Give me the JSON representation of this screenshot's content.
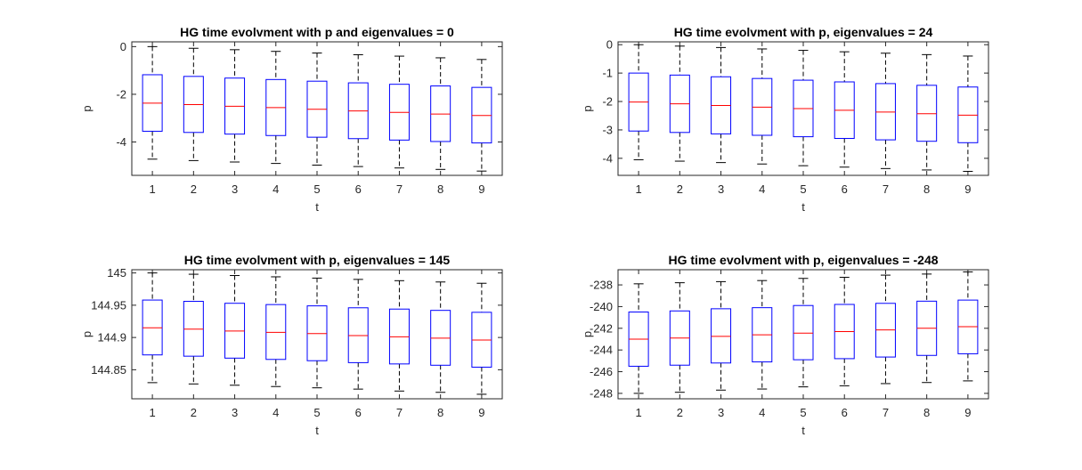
{
  "chart_data": [
    {
      "type": "box",
      "title": "HG time evolvment with p and eigenvalues = 0",
      "xlabel": "t",
      "ylabel": "p",
      "categories": [
        "1",
        "2",
        "3",
        "4",
        "5",
        "6",
        "7",
        "8",
        "9"
      ],
      "ylim": [
        -5.4,
        0.2
      ],
      "yticks": [
        0,
        -2,
        -4
      ],
      "ytick_labels": [
        "0",
        "-2",
        "-4"
      ],
      "boxes": [
        {
          "upper_whisker": 0.0,
          "q3": -1.18,
          "median": -2.37,
          "q1": -3.55,
          "lower_whisker": -4.72
        },
        {
          "upper_whisker": -0.07,
          "q3": -1.25,
          "median": -2.43,
          "q1": -3.6,
          "lower_whisker": -4.78
        },
        {
          "upper_whisker": -0.13,
          "q3": -1.32,
          "median": -2.5,
          "q1": -3.67,
          "lower_whisker": -4.84
        },
        {
          "upper_whisker": -0.2,
          "q3": -1.38,
          "median": -2.56,
          "q1": -3.73,
          "lower_whisker": -4.9
        },
        {
          "upper_whisker": -0.27,
          "q3": -1.45,
          "median": -2.63,
          "q1": -3.8,
          "lower_whisker": -4.97
        },
        {
          "upper_whisker": -0.34,
          "q3": -1.52,
          "median": -2.7,
          "q1": -3.86,
          "lower_whisker": -5.03
        },
        {
          "upper_whisker": -0.4,
          "q3": -1.58,
          "median": -2.76,
          "q1": -3.92,
          "lower_whisker": -5.09
        },
        {
          "upper_whisker": -0.47,
          "q3": -1.65,
          "median": -2.83,
          "q1": -3.98,
          "lower_whisker": -5.15
        },
        {
          "upper_whisker": -0.54,
          "q3": -1.71,
          "median": -2.89,
          "q1": -4.04,
          "lower_whisker": -5.22
        }
      ]
    },
    {
      "type": "box",
      "title": "HG time evolvment with p, eigenvalues = 24",
      "xlabel": "t",
      "ylabel": "p",
      "categories": [
        "1",
        "2",
        "3",
        "4",
        "5",
        "6",
        "7",
        "8",
        "9"
      ],
      "ylim": [
        -4.6,
        0.1
      ],
      "yticks": [
        0,
        -1,
        -2,
        -3,
        -4
      ],
      "ytick_labels": [
        "0",
        "-1",
        "-2",
        "-3",
        "-4"
      ],
      "boxes": [
        {
          "upper_whisker": 0.0,
          "q3": -1.0,
          "median": -2.02,
          "q1": -3.04,
          "lower_whisker": -4.05
        },
        {
          "upper_whisker": -0.05,
          "q3": -1.07,
          "median": -2.08,
          "q1": -3.09,
          "lower_whisker": -4.1
        },
        {
          "upper_whisker": -0.1,
          "q3": -1.13,
          "median": -2.14,
          "q1": -3.14,
          "lower_whisker": -4.15
        },
        {
          "upper_whisker": -0.15,
          "q3": -1.19,
          "median": -2.2,
          "q1": -3.19,
          "lower_whisker": -4.2
        },
        {
          "upper_whisker": -0.2,
          "q3": -1.25,
          "median": -2.25,
          "q1": -3.24,
          "lower_whisker": -4.26
        },
        {
          "upper_whisker": -0.25,
          "q3": -1.31,
          "median": -2.31,
          "q1": -3.3,
          "lower_whisker": -4.31
        },
        {
          "upper_whisker": -0.3,
          "q3": -1.37,
          "median": -2.37,
          "q1": -3.35,
          "lower_whisker": -4.36
        },
        {
          "upper_whisker": -0.35,
          "q3": -1.43,
          "median": -2.43,
          "q1": -3.4,
          "lower_whisker": -4.41
        },
        {
          "upper_whisker": -0.4,
          "q3": -1.49,
          "median": -2.48,
          "q1": -3.45,
          "lower_whisker": -4.46
        }
      ]
    },
    {
      "type": "box",
      "title": "HG time evolvment with p, eigenvalues = 145",
      "xlabel": "t",
      "ylabel": "p",
      "categories": [
        "1",
        "2",
        "3",
        "4",
        "5",
        "6",
        "7",
        "8",
        "9"
      ],
      "ylim": [
        144.805,
        145.005
      ],
      "yticks": [
        145,
        144.95,
        144.9,
        144.85
      ],
      "ytick_labels": [
        "145",
        "144.95",
        "144.9",
        "144.85"
      ],
      "boxes": [
        {
          "upper_whisker": 145.0,
          "q3": 144.958,
          "median": 144.915,
          "q1": 144.873,
          "lower_whisker": 144.83
        },
        {
          "upper_whisker": 144.998,
          "q3": 144.956,
          "median": 144.913,
          "q1": 144.871,
          "lower_whisker": 144.828
        },
        {
          "upper_whisker": 144.996,
          "q3": 144.953,
          "median": 144.91,
          "q1": 144.868,
          "lower_whisker": 144.826
        },
        {
          "upper_whisker": 144.994,
          "q3": 144.951,
          "median": 144.908,
          "q1": 144.866,
          "lower_whisker": 144.824
        },
        {
          "upper_whisker": 144.992,
          "q3": 144.949,
          "median": 144.906,
          "q1": 144.864,
          "lower_whisker": 144.822
        },
        {
          "upper_whisker": 144.99,
          "q3": 144.946,
          "median": 144.903,
          "q1": 144.861,
          "lower_whisker": 144.82
        },
        {
          "upper_whisker": 144.988,
          "q3": 144.944,
          "median": 144.901,
          "q1": 144.859,
          "lower_whisker": 144.817
        },
        {
          "upper_whisker": 144.986,
          "q3": 144.942,
          "median": 144.899,
          "q1": 144.857,
          "lower_whisker": 144.815
        },
        {
          "upper_whisker": 144.984,
          "q3": 144.939,
          "median": 144.896,
          "q1": 144.854,
          "lower_whisker": 144.812
        }
      ]
    },
    {
      "type": "box",
      "title": "HG time evolvment with p, eigenvalues = -248",
      "xlabel": "t",
      "ylabel": "p",
      "categories": [
        "1",
        "2",
        "3",
        "4",
        "5",
        "6",
        "7",
        "8",
        "9"
      ],
      "ylim": [
        -248.5,
        -236.6
      ],
      "yticks": [
        -238,
        -240,
        -242,
        -244,
        -246,
        -248
      ],
      "ytick_labels": [
        "-238",
        "-240",
        "-242",
        "-244",
        "-246",
        "-248"
      ],
      "boxes": [
        {
          "upper_whisker": -237.9,
          "q3": -240.5,
          "median": -243.0,
          "q1": -245.5,
          "lower_whisker": -248.0
        },
        {
          "upper_whisker": -237.8,
          "q3": -240.4,
          "median": -242.9,
          "q1": -245.4,
          "lower_whisker": -247.9
        },
        {
          "upper_whisker": -237.7,
          "q3": -240.2,
          "median": -242.75,
          "q1": -245.2,
          "lower_whisker": -247.7
        },
        {
          "upper_whisker": -237.6,
          "q3": -240.1,
          "median": -242.6,
          "q1": -245.1,
          "lower_whisker": -247.6
        },
        {
          "upper_whisker": -237.4,
          "q3": -239.9,
          "median": -242.45,
          "q1": -244.9,
          "lower_whisker": -247.4
        },
        {
          "upper_whisker": -237.3,
          "q3": -239.8,
          "median": -242.3,
          "q1": -244.8,
          "lower_whisker": -247.3
        },
        {
          "upper_whisker": -237.1,
          "q3": -239.7,
          "median": -242.15,
          "q1": -244.65,
          "lower_whisker": -247.1
        },
        {
          "upper_whisker": -237.0,
          "q3": -239.5,
          "median": -242.0,
          "q1": -244.5,
          "lower_whisker": -247.0
        },
        {
          "upper_whisker": -236.8,
          "q3": -239.4,
          "median": -241.85,
          "q1": -244.35,
          "lower_whisker": -246.85
        }
      ]
    }
  ],
  "colors": {
    "box": "#0000ff",
    "median": "#ff0000",
    "whisker": "#000000",
    "axes": "#262626",
    "background": "#ffffff"
  }
}
